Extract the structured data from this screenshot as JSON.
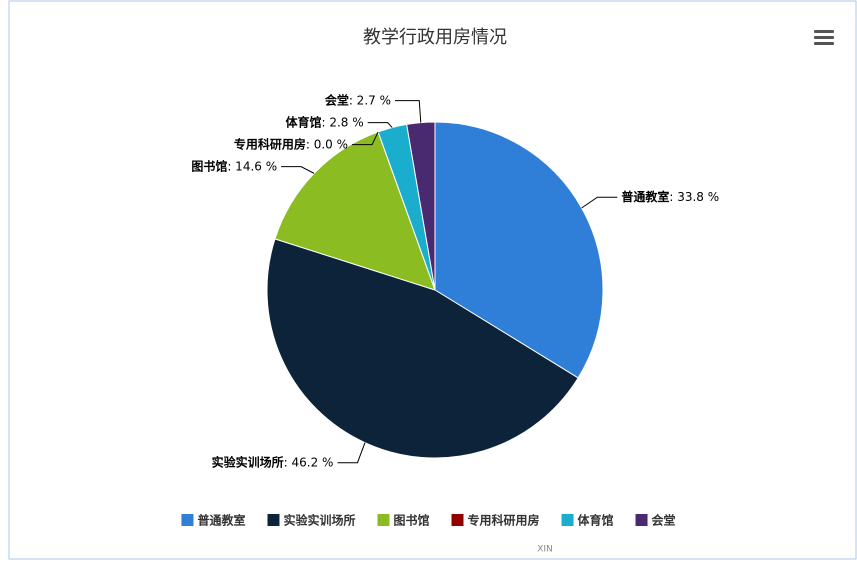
{
  "chart_data": {
    "type": "pie",
    "title": "教学行政用房情况",
    "categories": [
      "普通教室",
      "实验实训场所",
      "图书馆",
      "专用科研用房",
      "体育馆",
      "会堂"
    ],
    "values": [
      33.8,
      46.2,
      14.6,
      0.0,
      2.8,
      2.7
    ],
    "value_labels": [
      ": 33.8 %",
      ": 46.2 %",
      ": 14.6 %",
      ": 0.0 %",
      ": 2.8 %",
      ": 2.7 %"
    ],
    "colors": [
      "#2f7ed8",
      "#0d233a",
      "#8bbc21",
      "#910000",
      "#1aadce",
      "#492970"
    ],
    "legend": "bottom",
    "credits": "XIN"
  }
}
